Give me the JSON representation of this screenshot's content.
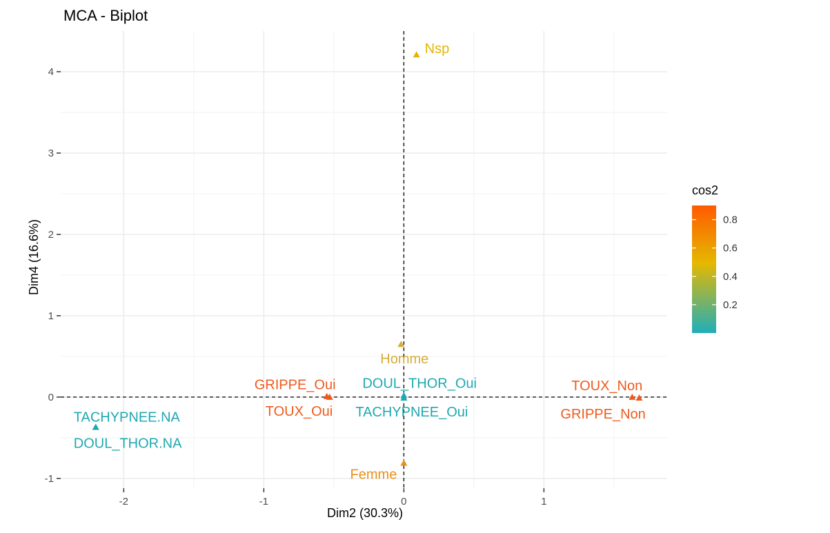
{
  "chart_data": {
    "type": "scatter",
    "title": "MCA - Biplot",
    "xlabel": "Dim2 (30.3%)",
    "ylabel": "Dim4 (16.6%)",
    "xlim": [
      -2.45,
      1.88
    ],
    "ylim": [
      -1.12,
      4.5
    ],
    "xticks": [
      -2,
      -1,
      0,
      1
    ],
    "yticks": [
      -1,
      0,
      1,
      2,
      3,
      4
    ],
    "grid": true,
    "reference_lines": {
      "x": 0,
      "y": 0
    },
    "points": [
      {
        "name": "Nsp",
        "x": 0.09,
        "y": 4.21,
        "cos2": 0.5,
        "color": "#E6B400"
      },
      {
        "name": "Homme",
        "x": -0.02,
        "y": 0.65,
        "cos2": 0.4,
        "color": "#D4AD3A"
      },
      {
        "name": "Femme",
        "x": 0.0,
        "y": -0.81,
        "cos2": 0.55,
        "color": "#E8901A"
      },
      {
        "name": "GRIPPE_Oui",
        "x": -0.55,
        "y": 0.01,
        "cos2": 0.85,
        "color": "#EE5A1C"
      },
      {
        "name": "TOUX_Oui",
        "x": -0.53,
        "y": 0.0,
        "cos2": 0.85,
        "color": "#EE5A1C"
      },
      {
        "name": "DOUL_THOR_Oui",
        "x": 0.0,
        "y": 0.02,
        "cos2": 0.02,
        "color": "#1FA8B0"
      },
      {
        "name": "TACHYPNEE_Oui",
        "x": 0.0,
        "y": -0.01,
        "cos2": 0.02,
        "color": "#1FA8B0"
      },
      {
        "name": "TOUX_Non",
        "x": 1.63,
        "y": 0.0,
        "cos2": 0.85,
        "color": "#EE5A1C"
      },
      {
        "name": "GRIPPE_Non",
        "x": 1.68,
        "y": -0.01,
        "cos2": 0.85,
        "color": "#EE5A1C"
      },
      {
        "name": "TACHYPNEE.NA",
        "x": -2.2,
        "y": -0.37,
        "cos2": 0.02,
        "color": "#1FA8B0"
      },
      {
        "name": "DOUL_THOR.NA",
        "x": -2.2,
        "y": -0.37,
        "cos2": 0.02,
        "color": "#1FA8B0"
      }
    ],
    "legend": {
      "title": "cos2",
      "placement": "right",
      "ticks": [
        "0.8",
        "0.6",
        "0.4",
        "0.2"
      ],
      "tick_values": [
        0.8,
        0.6,
        0.4,
        0.2
      ],
      "range": [
        0.0,
        0.9
      ],
      "colors": [
        "#20AEBA",
        "#E5B800",
        "#FF5A00"
      ]
    }
  }
}
